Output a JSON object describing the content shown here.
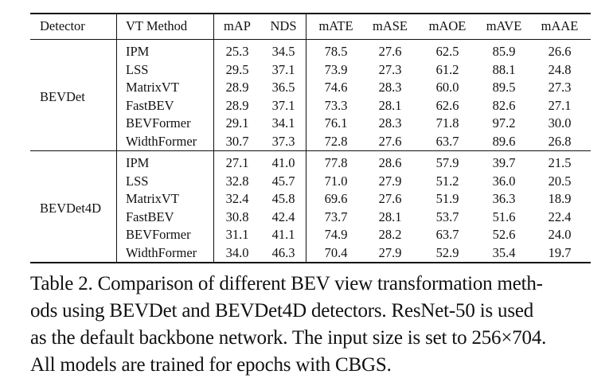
{
  "table": {
    "columns": [
      "Detector",
      "VT Method",
      "mAP",
      "NDS",
      "mATE",
      "mASE",
      "mAOE",
      "mAVE",
      "mAAE"
    ],
    "groups": [
      {
        "detector": "BEVDet",
        "rows": [
          {
            "method": "IPM",
            "values": [
              "25.3",
              "34.5",
              "78.5",
              "27.6",
              "62.5",
              "85.9",
              "26.6"
            ]
          },
          {
            "method": "LSS",
            "values": [
              "29.5",
              "37.1",
              "73.9",
              "27.3",
              "61.2",
              "88.1",
              "24.8"
            ]
          },
          {
            "method": "MatrixVT",
            "values": [
              "28.9",
              "36.5",
              "74.6",
              "28.3",
              "60.0",
              "89.5",
              "27.3"
            ]
          },
          {
            "method": "FastBEV",
            "values": [
              "28.9",
              "37.1",
              "73.3",
              "28.1",
              "62.6",
              "82.6",
              "27.1"
            ]
          },
          {
            "method": "BEVFormer",
            "values": [
              "29.1",
              "34.1",
              "76.1",
              "28.3",
              "71.8",
              "97.2",
              "30.0"
            ]
          },
          {
            "method": "WidthFormer",
            "values": [
              "30.7",
              "37.3",
              "72.8",
              "27.6",
              "63.7",
              "89.6",
              "26.8"
            ]
          }
        ]
      },
      {
        "detector": "BEVDet4D",
        "rows": [
          {
            "method": "IPM",
            "values": [
              "27.1",
              "41.0",
              "77.8",
              "28.6",
              "57.9",
              "39.7",
              "21.5"
            ]
          },
          {
            "method": "LSS",
            "values": [
              "32.8",
              "45.7",
              "71.0",
              "27.9",
              "51.2",
              "36.0",
              "20.5"
            ]
          },
          {
            "method": "MatrixVT",
            "values": [
              "32.4",
              "45.8",
              "69.6",
              "27.6",
              "51.9",
              "36.3",
              "18.9"
            ]
          },
          {
            "method": "FastBEV",
            "values": [
              "30.8",
              "42.4",
              "73.7",
              "28.1",
              "53.7",
              "51.6",
              "22.4"
            ]
          },
          {
            "method": "BEVFormer",
            "values": [
              "31.1",
              "41.1",
              "74.9",
              "28.2",
              "63.7",
              "52.6",
              "24.0"
            ]
          },
          {
            "method": "WidthFormer",
            "values": [
              "34.0",
              "46.3",
              "70.4",
              "27.9",
              "52.9",
              "35.4",
              "19.7"
            ]
          }
        ]
      }
    ]
  },
  "caption": {
    "lines": [
      "Table 2. Comparison of different BEV view transformation meth-",
      "ods using BEVDet and BEVDet4D detectors. ResNet-50 is used",
      "as the default backbone network. The input size is set to 256×704.",
      "All models are trained for epochs with CBGS."
    ]
  }
}
